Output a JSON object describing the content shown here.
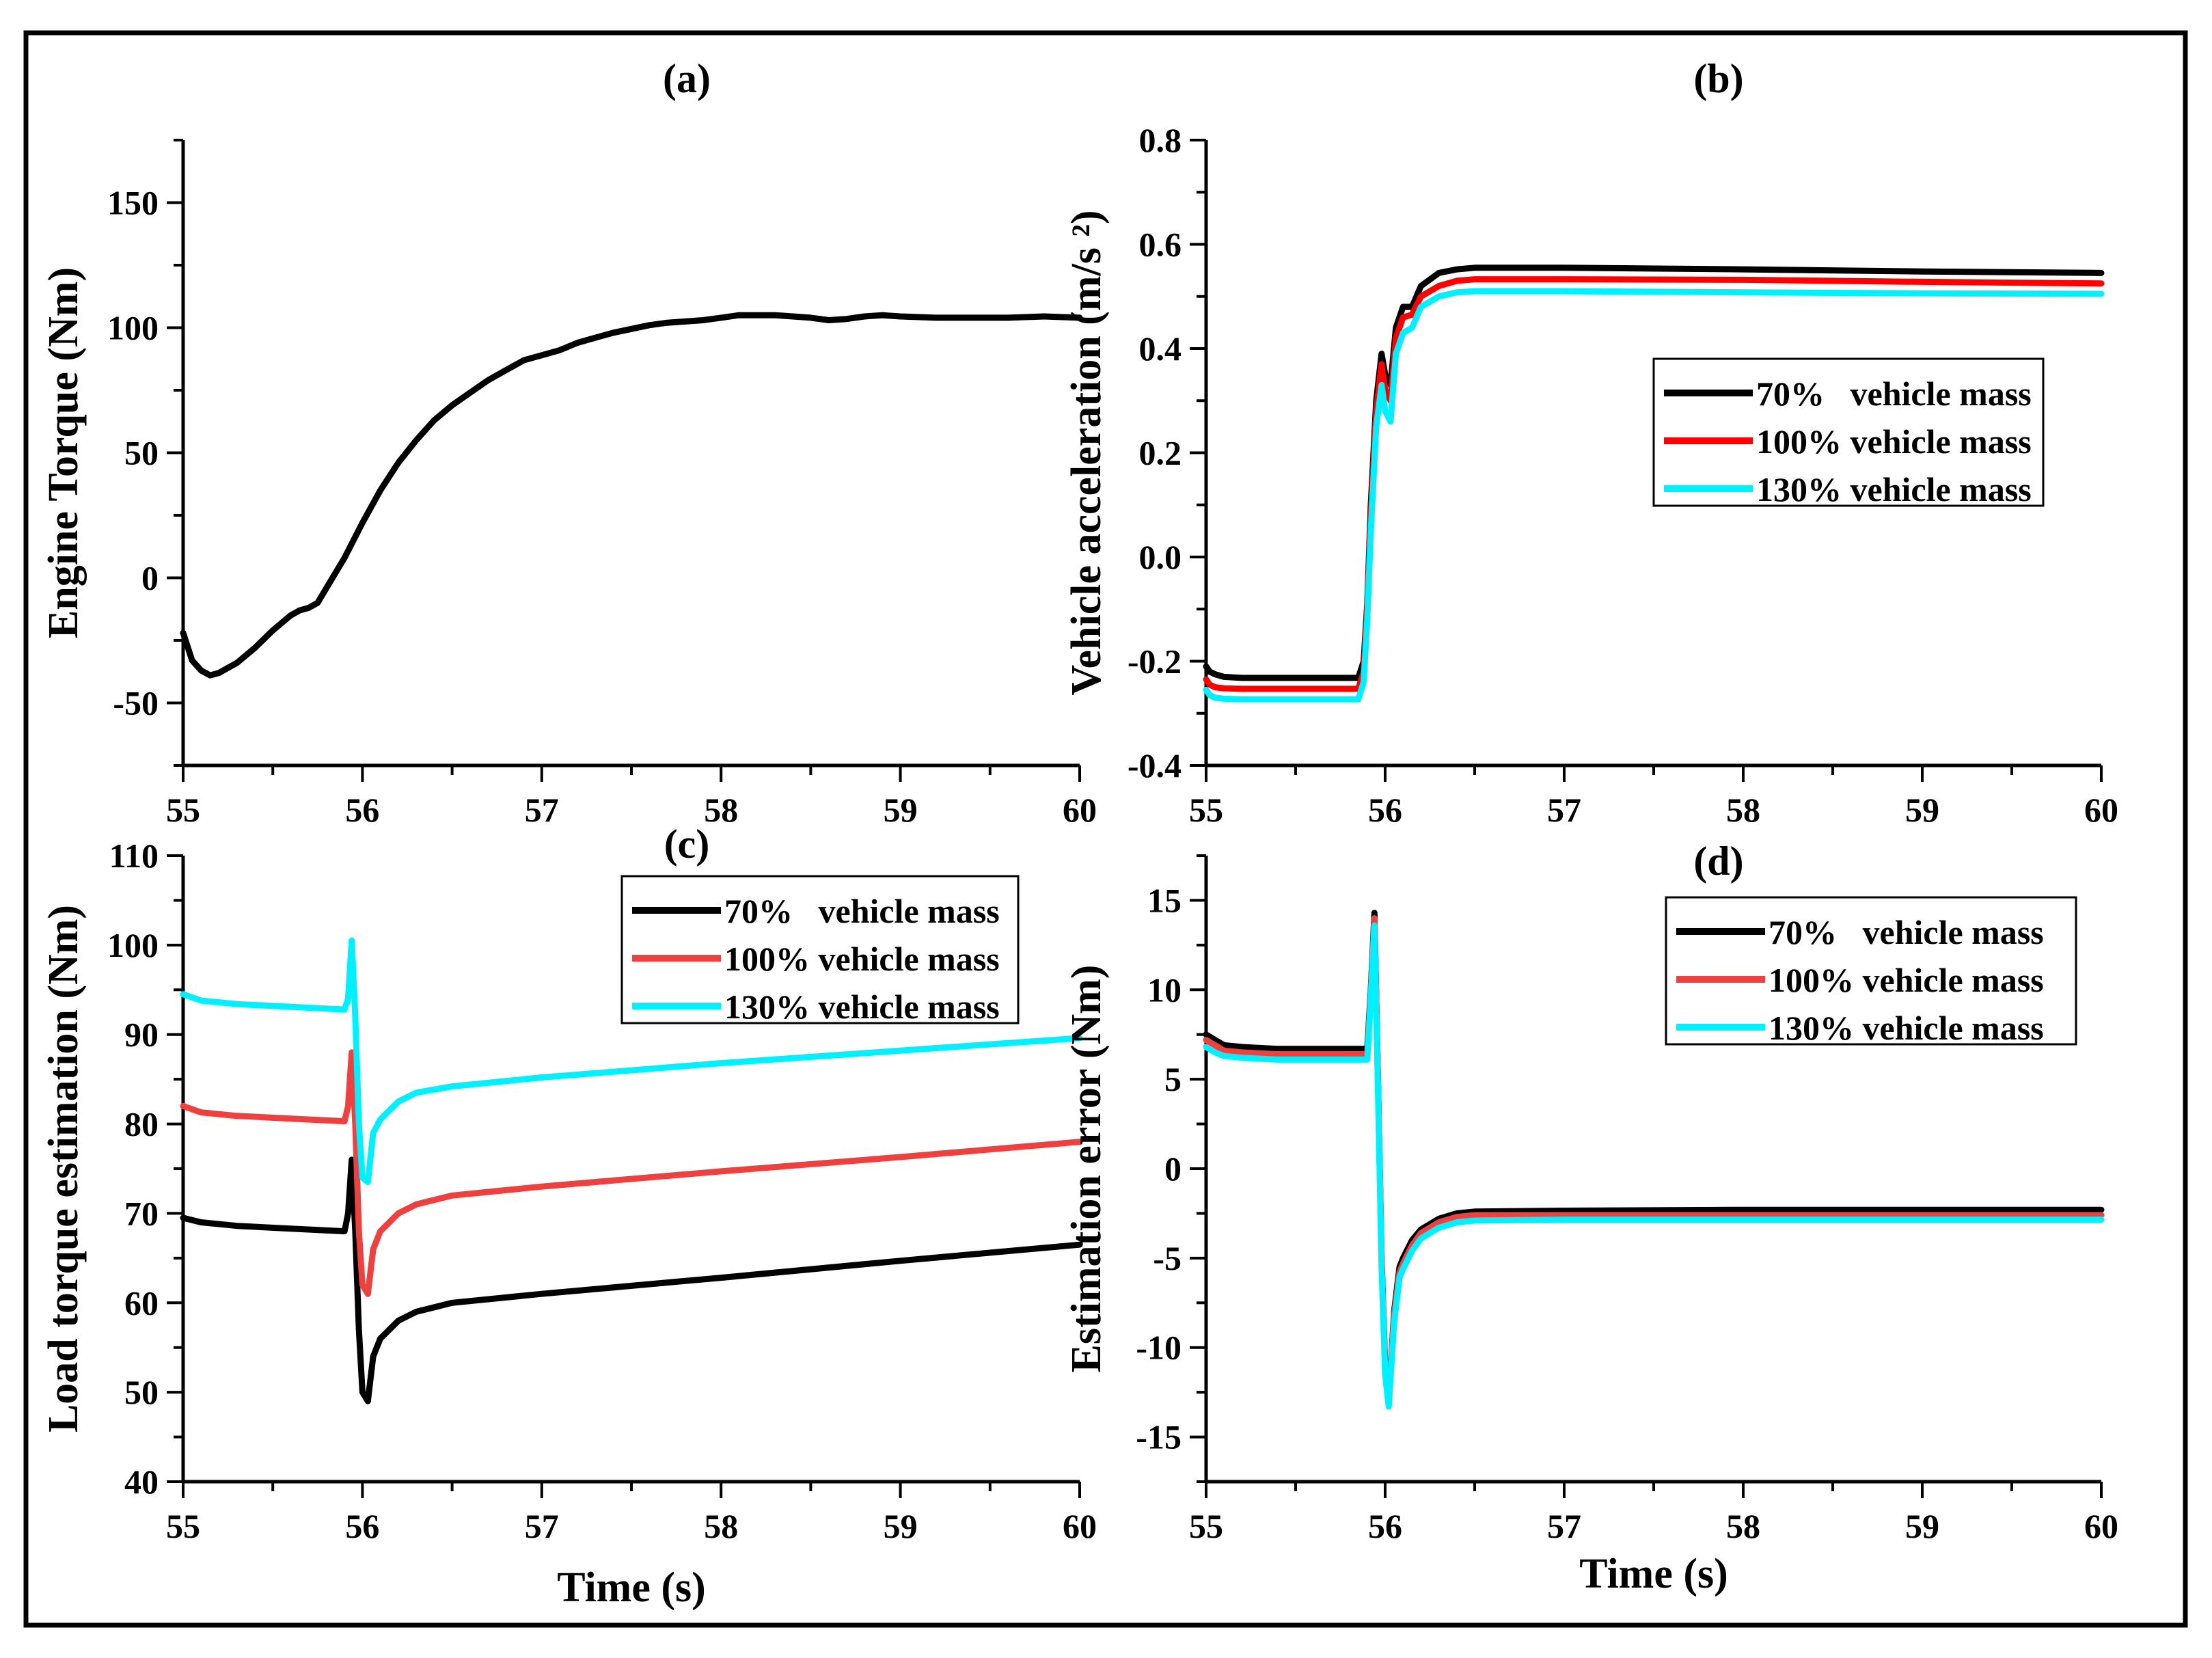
{
  "colors": {
    "frame": "#000000",
    "black_series": "#000000",
    "red_series": "#ff0000",
    "red_light_series": "#ef4040",
    "cyan_series": "#00f0ff"
  },
  "chart_data": [
    {
      "type": "line",
      "title": "(a)",
      "xlabel": "",
      "ylabel": "Engine Torque (Nm)",
      "xlim": [
        55,
        60
      ],
      "ylim": [
        -75,
        175
      ],
      "xticks": [
        "55",
        "56",
        "57",
        "58",
        "59",
        "60"
      ],
      "yticks": [
        "-50",
        "0",
        "50",
        "100",
        "150"
      ],
      "grid": false,
      "legend": null,
      "series": [
        {
          "name": "",
          "color": "#000000",
          "x": [
            55.0,
            55.05,
            55.1,
            55.15,
            55.2,
            55.3,
            55.4,
            55.5,
            55.6,
            55.65,
            55.7,
            55.75,
            55.8,
            55.9,
            56.0,
            56.1,
            56.2,
            56.3,
            56.4,
            56.5,
            56.6,
            56.7,
            56.8,
            56.9,
            57.0,
            57.1,
            57.2,
            57.3,
            57.4,
            57.5,
            57.6,
            57.7,
            57.8,
            57.9,
            58.0,
            58.1,
            58.2,
            58.3,
            58.4,
            58.5,
            58.6,
            58.7,
            58.8,
            58.9,
            59.0,
            59.2,
            59.4,
            59.6,
            59.8,
            60.0
          ],
          "y": [
            -22,
            -33,
            -37,
            -39,
            -38,
            -34,
            -28,
            -21,
            -15,
            -13,
            -12,
            -10,
            -4,
            8,
            22,
            35,
            46,
            55,
            63,
            69,
            74,
            79,
            83,
            87,
            89,
            91,
            94,
            96,
            98,
            99.5,
            101,
            102,
            102.5,
            103,
            104,
            105,
            105,
            105,
            104.5,
            104,
            103,
            103.5,
            104.5,
            105,
            104.5,
            104,
            104,
            104,
            104.5,
            104
          ]
        }
      ]
    },
    {
      "type": "line",
      "title": "(b)",
      "xlabel": "",
      "ylabel": "Vehicle acceleration (m/s ²)",
      "xlim": [
        55,
        60
      ],
      "ylim": [
        -0.4,
        0.8
      ],
      "xticks": [
        "55",
        "56",
        "57",
        "58",
        "59",
        "60"
      ],
      "yticks": [
        "-0.4",
        "-0.2",
        "0.0",
        "0.2",
        "0.4",
        "0.6",
        "0.8"
      ],
      "grid": false,
      "legend": "center-right",
      "legend_entries": [
        "70%   vehicle mass",
        "100% vehicle mass",
        "130% vehicle mass"
      ],
      "series": [
        {
          "name": "70%   vehicle mass",
          "color": "#000000",
          "x": [
            55.0,
            55.02,
            55.05,
            55.1,
            55.2,
            55.5,
            55.85,
            55.88,
            55.9,
            55.92,
            55.95,
            55.98,
            56.0,
            56.03,
            56.06,
            56.1,
            56.15,
            56.2,
            56.3,
            56.4,
            56.5,
            57.0,
            58.0,
            59.0,
            60.0
          ],
          "y": [
            -0.21,
            -0.22,
            -0.225,
            -0.23,
            -0.232,
            -0.232,
            -0.232,
            -0.2,
            -0.09,
            0.1,
            0.3,
            0.39,
            0.35,
            0.33,
            0.44,
            0.48,
            0.48,
            0.52,
            0.545,
            0.552,
            0.555,
            0.555,
            0.552,
            0.548,
            0.545
          ]
        },
        {
          "name": "100% vehicle mass",
          "color": "#ff0000",
          "x": [
            55.0,
            55.02,
            55.05,
            55.1,
            55.2,
            55.5,
            55.85,
            55.88,
            55.9,
            55.92,
            55.95,
            55.98,
            56.0,
            56.03,
            56.06,
            56.1,
            56.15,
            56.2,
            56.3,
            56.4,
            56.5,
            57.0,
            58.0,
            59.0,
            60.0
          ],
          "y": [
            -0.235,
            -0.245,
            -0.25,
            -0.252,
            -0.253,
            -0.253,
            -0.253,
            -0.22,
            -0.1,
            0.08,
            0.28,
            0.37,
            0.32,
            0.3,
            0.42,
            0.46,
            0.465,
            0.5,
            0.52,
            0.53,
            0.533,
            0.533,
            0.532,
            0.528,
            0.525
          ]
        },
        {
          "name": "130% vehicle mass",
          "color": "#00f0ff",
          "x": [
            55.0,
            55.02,
            55.05,
            55.1,
            55.2,
            55.5,
            55.85,
            55.88,
            55.9,
            55.92,
            55.95,
            55.98,
            56.0,
            56.03,
            56.06,
            56.1,
            56.15,
            56.2,
            56.3,
            56.4,
            56.5,
            57.0,
            58.0,
            59.0,
            60.0
          ],
          "y": [
            -0.255,
            -0.265,
            -0.27,
            -0.272,
            -0.273,
            -0.273,
            -0.273,
            -0.24,
            -0.12,
            0.05,
            0.25,
            0.33,
            0.28,
            0.26,
            0.39,
            0.43,
            0.44,
            0.48,
            0.5,
            0.508,
            0.51,
            0.51,
            0.508,
            0.506,
            0.505
          ]
        }
      ]
    },
    {
      "type": "line",
      "title": "(c)",
      "xlabel": "Time (s)",
      "ylabel": "Load torque estimation (Nm)",
      "xlim": [
        55,
        60
      ],
      "ylim": [
        40,
        110
      ],
      "xticks": [
        "55",
        "56",
        "57",
        "58",
        "59",
        "60"
      ],
      "yticks": [
        "40",
        "50",
        "60",
        "70",
        "80",
        "90",
        "100",
        "110"
      ],
      "grid": false,
      "legend": "top-right",
      "legend_entries": [
        "70%   vehicle mass",
        "100% vehicle mass",
        "130% vehicle mass"
      ],
      "series": [
        {
          "name": "70%   vehicle mass",
          "color": "#000000",
          "x": [
            55.0,
            55.1,
            55.3,
            55.6,
            55.9,
            55.92,
            55.94,
            55.96,
            55.98,
            56.0,
            56.03,
            56.06,
            56.1,
            56.15,
            56.2,
            56.3,
            56.5,
            57.0,
            58.0,
            59.0,
            60.0
          ],
          "y": [
            69.5,
            69,
            68.6,
            68.3,
            68,
            70,
            76,
            68,
            57,
            50,
            49,
            54,
            56,
            57,
            58,
            59,
            60,
            61,
            62.8,
            64.7,
            66.5
          ]
        },
        {
          "name": "100% vehicle mass",
          "color": "#ef4040",
          "x": [
            55.0,
            55.1,
            55.3,
            55.6,
            55.9,
            55.92,
            55.94,
            55.96,
            55.98,
            56.0,
            56.03,
            56.06,
            56.1,
            56.15,
            56.2,
            56.3,
            56.5,
            57.0,
            58.0,
            59.0,
            60.0
          ],
          "y": [
            82,
            81.3,
            80.9,
            80.6,
            80.3,
            82,
            88,
            80,
            68,
            62,
            61,
            66,
            68,
            69,
            70,
            71,
            72,
            73,
            74.7,
            76.3,
            78
          ]
        },
        {
          "name": "130% vehicle mass",
          "color": "#00f0ff",
          "x": [
            55.0,
            55.1,
            55.3,
            55.6,
            55.9,
            55.92,
            55.94,
            55.96,
            55.98,
            56.0,
            56.03,
            56.06,
            56.1,
            56.15,
            56.2,
            56.3,
            56.5,
            57.0,
            58.0,
            59.0,
            60.0
          ],
          "y": [
            94.5,
            93.8,
            93.4,
            93.1,
            92.8,
            94,
            100.5,
            92,
            80,
            74,
            73.5,
            79,
            80.5,
            81.5,
            82.5,
            83.5,
            84.2,
            85.2,
            86.8,
            88.2,
            89.6
          ]
        }
      ]
    },
    {
      "type": "line",
      "title": "(d)",
      "xlabel": "Time (s)",
      "ylabel": "Estimation error (Nm)",
      "xlim": [
        55,
        60
      ],
      "ylim": [
        -17.5,
        17.5
      ],
      "xticks": [
        "55",
        "56",
        "57",
        "58",
        "59",
        "60"
      ],
      "yticks": [
        "-15",
        "-10",
        "-5",
        "0",
        "5",
        "10",
        "15"
      ],
      "grid": false,
      "legend": "top-right",
      "legend_entries": [
        "70%   vehicle mass",
        "100% vehicle mass",
        "130% vehicle mass"
      ],
      "series": [
        {
          "name": "70%   vehicle mass",
          "color": "#000000",
          "x": [
            55.0,
            55.05,
            55.1,
            55.2,
            55.4,
            55.7,
            55.9,
            55.92,
            55.94,
            55.96,
            55.98,
            56.0,
            56.02,
            56.05,
            56.08,
            56.1,
            56.15,
            56.2,
            56.3,
            56.4,
            56.5,
            57.0,
            58.0,
            59.0,
            60.0
          ],
          "y": [
            7.5,
            7.2,
            6.9,
            6.8,
            6.7,
            6.7,
            6.7,
            10,
            14.3,
            5,
            -5,
            -11,
            -13,
            -8,
            -5.5,
            -5,
            -4,
            -3.4,
            -2.8,
            -2.5,
            -2.4,
            -2.35,
            -2.3,
            -2.3,
            -2.3
          ]
        },
        {
          "name": "100% vehicle mass",
          "color": "#ef4040",
          "x": [
            55.0,
            55.05,
            55.1,
            55.2,
            55.4,
            55.7,
            55.9,
            55.92,
            55.94,
            55.96,
            55.98,
            56.0,
            56.02,
            56.05,
            56.08,
            56.1,
            56.15,
            56.2,
            56.3,
            56.4,
            56.5,
            57.0,
            58.0,
            59.0,
            60.0
          ],
          "y": [
            7.2,
            6.9,
            6.6,
            6.5,
            6.4,
            6.4,
            6.4,
            9.8,
            14,
            4.8,
            -5.2,
            -11.2,
            -13.1,
            -8.2,
            -5.8,
            -5.3,
            -4.3,
            -3.6,
            -3,
            -2.7,
            -2.6,
            -2.6,
            -2.6,
            -2.6,
            -2.6
          ]
        },
        {
          "name": "130% vehicle mass",
          "color": "#00f0ff",
          "x": [
            55.0,
            55.05,
            55.1,
            55.2,
            55.4,
            55.7,
            55.9,
            55.92,
            55.94,
            55.96,
            55.98,
            56.0,
            56.02,
            56.05,
            56.08,
            56.1,
            56.15,
            56.2,
            56.3,
            56.4,
            56.5,
            57.0,
            58.0,
            59.0,
            60.0
          ],
          "y": [
            6.8,
            6.5,
            6.3,
            6.2,
            6.1,
            6.1,
            6.1,
            9.5,
            13.6,
            4.5,
            -5.5,
            -11.5,
            -13.3,
            -8.6,
            -6.1,
            -5.6,
            -4.6,
            -3.9,
            -3.3,
            -3,
            -2.9,
            -2.85,
            -2.85,
            -2.85,
            -2.85
          ]
        }
      ]
    }
  ]
}
